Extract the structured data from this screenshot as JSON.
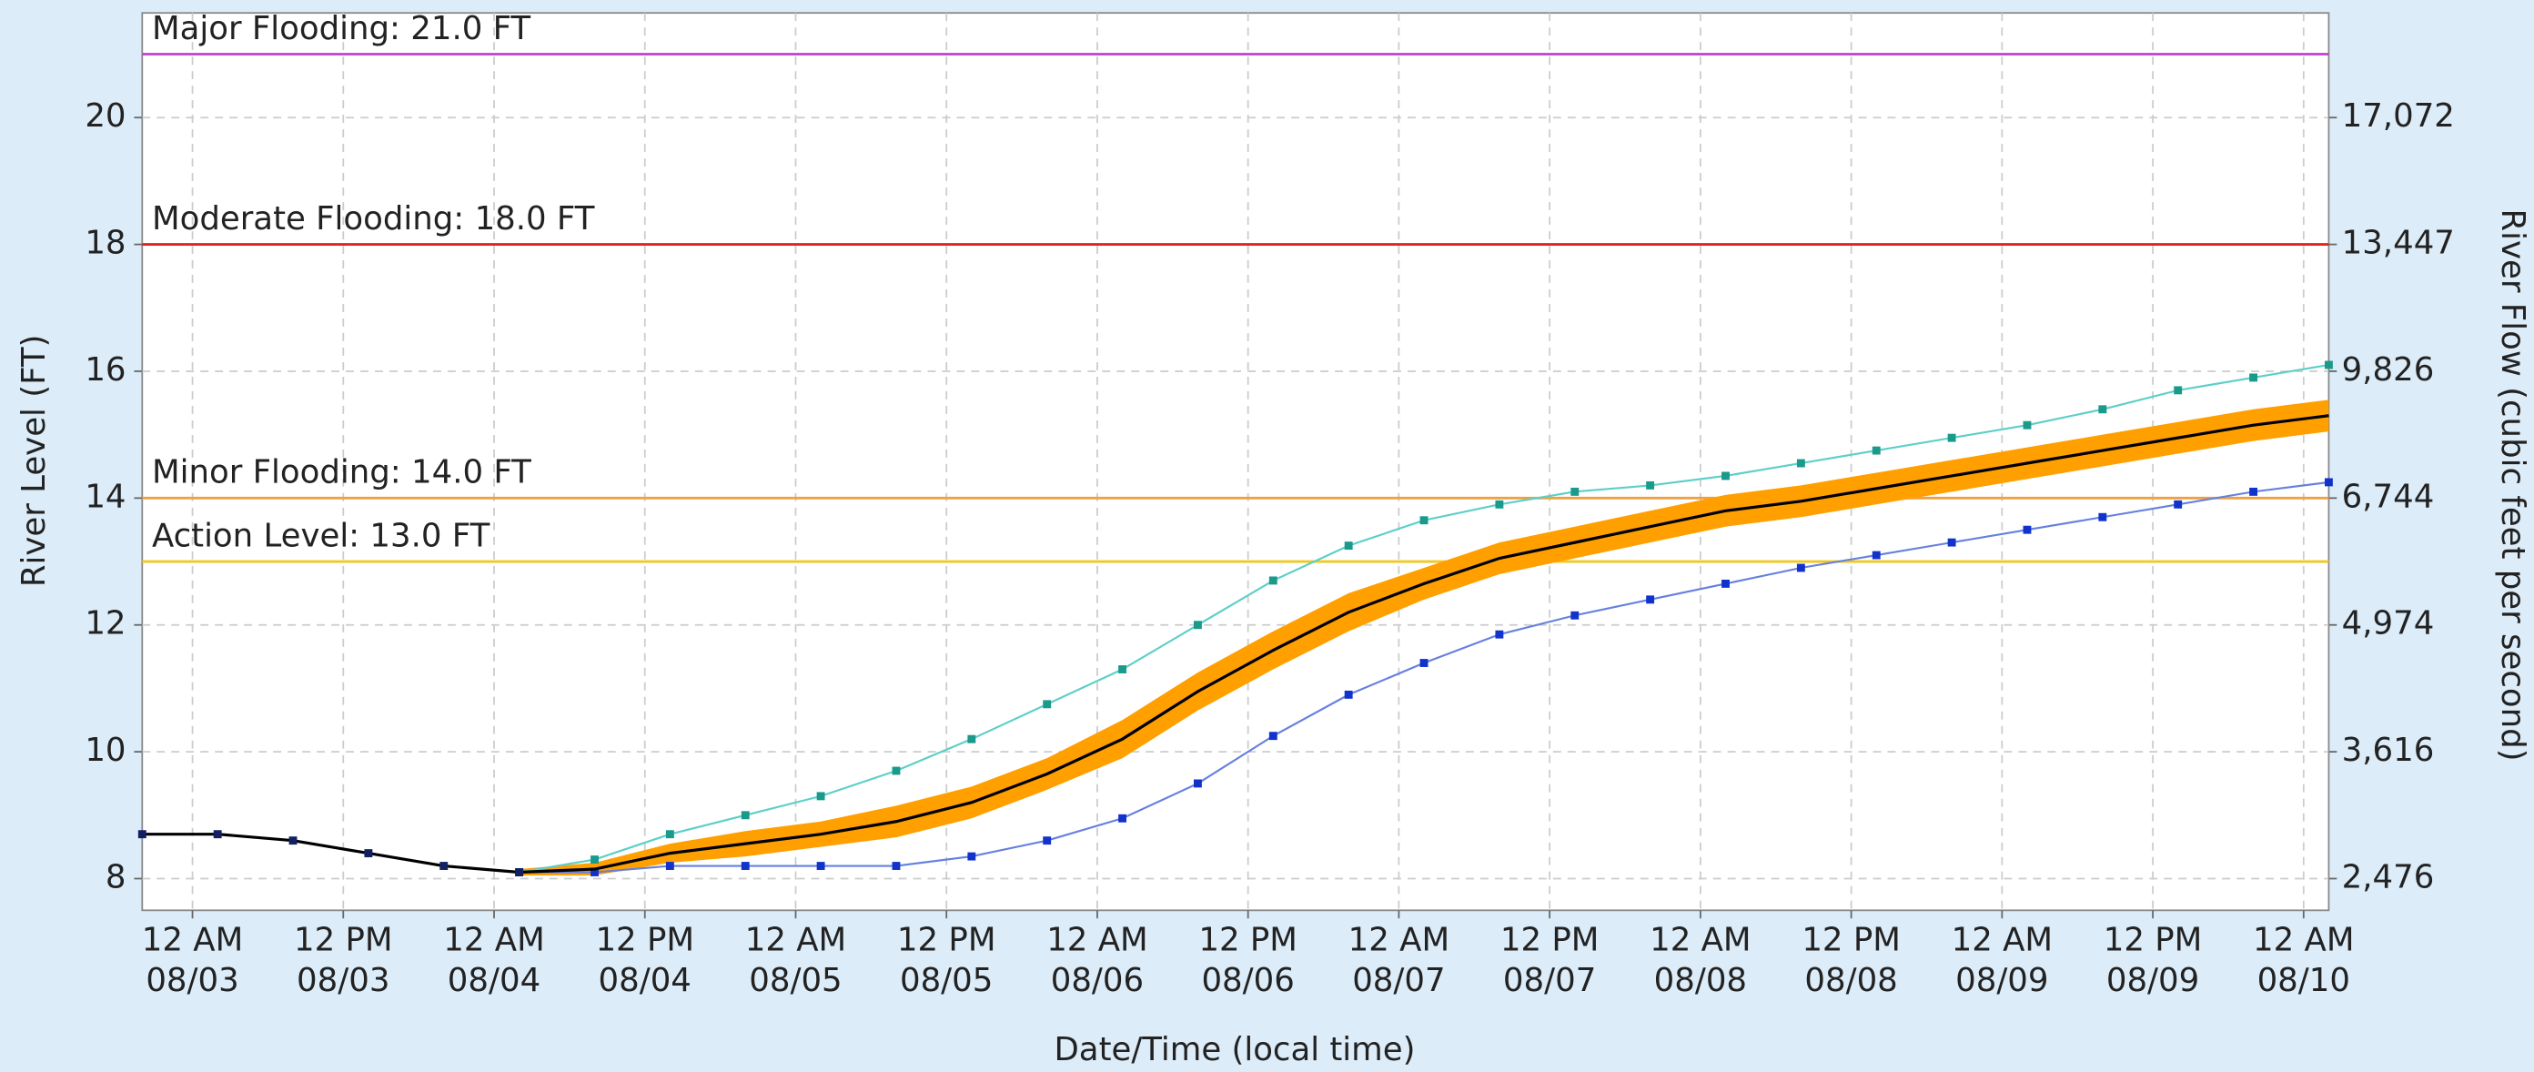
{
  "chart_data": {
    "type": "hydrograph",
    "x_label": "Date/Time (local time)",
    "y_label": "River Level (FT)",
    "y2_label": "River Flow (cubic feet per second)",
    "x": [
      "08/02 8 PM",
      "08/03 2 AM",
      "08/03 8 AM",
      "08/03 2 PM",
      "08/03 8 PM",
      "08/04 2 AM",
      "08/04 8 AM",
      "08/04 2 PM",
      "08/04 8 PM",
      "08/05 2 AM",
      "08/05 8 AM",
      "08/05 2 PM",
      "08/05 8 PM",
      "08/06 2 AM",
      "08/06 8 AM",
      "08/06 2 PM",
      "08/06 8 PM",
      "08/07 2 AM",
      "08/07 8 AM",
      "08/07 2 PM",
      "08/07 8 PM",
      "08/08 2 AM",
      "08/08 8 AM",
      "08/08 2 PM",
      "08/08 8 PM",
      "08/09 2 AM",
      "08/09 8 AM",
      "08/09 2 PM",
      "08/09 8 PM",
      "08/10 2 AM"
    ],
    "xlim": [
      "08/02 8 PM",
      "08/10 2 AM"
    ],
    "xticks": [
      {
        "value": "08/03 12 AM",
        "label": "12 AM\n08/03"
      },
      {
        "value": "08/03 12 PM",
        "label": "12 PM\n08/03"
      },
      {
        "value": "08/04 12 AM",
        "label": "12 AM\n08/04"
      },
      {
        "value": "08/04 12 PM",
        "label": "12 PM\n08/04"
      },
      {
        "value": "08/05 12 AM",
        "label": "12 AM\n08/05"
      },
      {
        "value": "08/05 12 PM",
        "label": "12 PM\n08/05"
      },
      {
        "value": "08/06 12 AM",
        "label": "12 AM\n08/06"
      },
      {
        "value": "08/06 12 PM",
        "label": "12 PM\n08/06"
      },
      {
        "value": "08/07 12 AM",
        "label": "12 AM\n08/07"
      },
      {
        "value": "08/07 12 PM",
        "label": "12 PM\n08/07"
      },
      {
        "value": "08/08 12 AM",
        "label": "12 AM\n08/08"
      },
      {
        "value": "08/08 12 PM",
        "label": "12 PM\n08/08"
      },
      {
        "value": "08/09 12 AM",
        "label": "12 AM\n08/09"
      },
      {
        "value": "08/09 12 PM",
        "label": "12 PM\n08/09"
      },
      {
        "value": "08/10 12 AM",
        "label": "12 AM\n08/10"
      }
    ],
    "ylim": [
      7.5,
      21.65
    ],
    "yticks": [
      8,
      10,
      12,
      14,
      16,
      18,
      20
    ],
    "y2ticks": [
      {
        "value": 2476,
        "label": "2,476"
      },
      {
        "value": 3616,
        "label": "3,616"
      },
      {
        "value": 4974,
        "label": "4,974"
      },
      {
        "value": 6744,
        "label": "6,744"
      },
      {
        "value": 9826,
        "label": "9,826"
      },
      {
        "value": 13447,
        "label": "13,447"
      },
      {
        "value": 17072,
        "label": "17,072"
      }
    ],
    "grid": true,
    "thresholds": [
      {
        "label": "Major Flooding: 21.0 FT",
        "value": 21,
        "color": "#c040d0"
      },
      {
        "label": "Moderate Flooding: 18.0 FT",
        "value": 18,
        "color": "#e82020"
      },
      {
        "label": "Minor Flooding: 14.0 FT",
        "value": 14,
        "color": "#f0a040"
      },
      {
        "label": "Action Level: 13.0 FT",
        "value": 13,
        "color": "#f0c820"
      }
    ],
    "band": {
      "color": "#ffa000",
      "lower": [
        null,
        null,
        null,
        null,
        null,
        8.05,
        8.05,
        8.25,
        8.35,
        8.5,
        8.65,
        8.95,
        9.4,
        9.9,
        10.65,
        11.3,
        11.9,
        12.4,
        12.8,
        13.05,
        13.3,
        13.55,
        13.7,
        13.9,
        14.1,
        14.3,
        14.5,
        14.7,
        14.9,
        15.05
      ],
      "upper": [
        null,
        null,
        null,
        null,
        null,
        8.15,
        8.25,
        8.55,
        8.75,
        8.9,
        9.15,
        9.45,
        9.9,
        10.5,
        11.25,
        11.9,
        12.5,
        12.9,
        13.3,
        13.55,
        13.8,
        14.05,
        14.2,
        14.4,
        14.6,
        14.8,
        15.0,
        15.2,
        15.4,
        15.55
      ]
    },
    "series": [
      {
        "color": "#5ccfc8",
        "marker_color": "#1a9a8a",
        "values": [
          null,
          null,
          null,
          null,
          null,
          8.1,
          8.3,
          8.7,
          9.0,
          9.3,
          9.7,
          10.2,
          10.75,
          11.3,
          12.0,
          12.7,
          13.25,
          13.65,
          13.9,
          14.1,
          14.2,
          14.35,
          14.55,
          14.75,
          14.95,
          15.15,
          15.4,
          15.7,
          15.9,
          16.1
        ]
      },
      {
        "color": "#6680e0",
        "marker_color": "#1133cc",
        "values": [
          null,
          null,
          null,
          null,
          null,
          8.1,
          8.1,
          8.2,
          8.2,
          8.2,
          8.2,
          8.35,
          8.6,
          8.95,
          9.5,
          10.25,
          10.9,
          11.4,
          11.85,
          12.15,
          12.4,
          12.65,
          12.9,
          13.1,
          13.3,
          13.5,
          13.7,
          13.9,
          14.1,
          14.25
        ]
      },
      {
        "color": "#000000",
        "values": [
          null,
          null,
          null,
          null,
          null,
          8.1,
          8.15,
          8.4,
          8.55,
          8.7,
          8.9,
          9.2,
          9.65,
          10.2,
          10.95,
          11.6,
          12.2,
          12.65,
          13.05,
          13.3,
          13.55,
          13.8,
          13.95,
          14.15,
          14.35,
          14.55,
          14.75,
          14.95,
          15.15,
          15.3
        ]
      },
      {
        "color": "#000000",
        "marker_color": "#102060",
        "values": [
          8.7,
          8.7,
          8.6,
          8.4,
          8.2,
          8.1,
          null,
          null,
          null,
          null,
          null,
          null,
          null,
          null,
          null,
          null,
          null,
          null,
          null,
          null,
          null,
          null,
          null,
          null,
          null,
          null,
          null,
          null,
          null,
          null
        ]
      }
    ]
  }
}
